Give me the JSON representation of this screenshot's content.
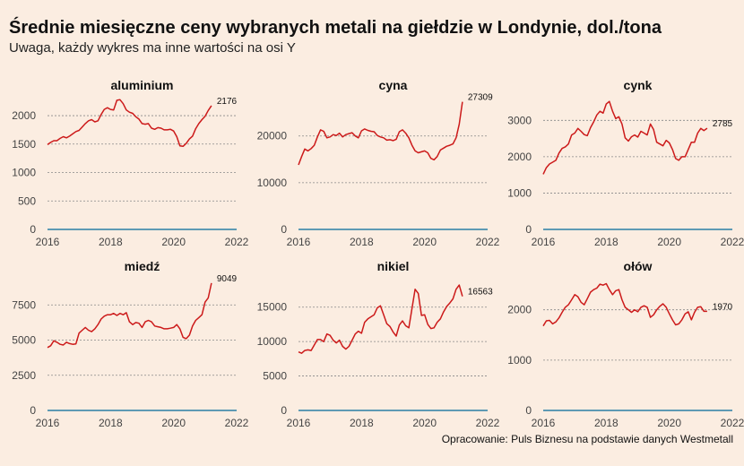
{
  "title": "Średnie miesięczne ceny wybranych metali na giełdzie w Londynie, dol./tona",
  "subtitle": "Uwaga, każdy wykres ma inne wartości na osi Y",
  "source": "Opracowanie: Puls Biznesu na podstawie danych Westmetall",
  "colors": {
    "line": "#cc1a1a",
    "zero_line": "#2a7fa6",
    "grid": "#888888",
    "background": "#fbede1"
  },
  "chart_data": [
    {
      "type": "line",
      "title": "aluminium",
      "xlim": [
        2016,
        2022
      ],
      "ylim": [
        0,
        2300
      ],
      "xticks": [
        2016,
        2018,
        2020,
        2022
      ],
      "yticks": [
        0,
        500,
        1000,
        1500,
        2000
      ],
      "last_label": "2176",
      "x": [
        2016.0,
        2016.1,
        2016.2,
        2016.3,
        2016.4,
        2016.5,
        2016.6,
        2016.7,
        2016.8,
        2016.9,
        2017.0,
        2017.1,
        2017.2,
        2017.3,
        2017.4,
        2017.5,
        2017.6,
        2017.7,
        2017.8,
        2017.9,
        2018.0,
        2018.1,
        2018.2,
        2018.3,
        2018.4,
        2018.5,
        2018.6,
        2018.7,
        2018.8,
        2018.9,
        2019.0,
        2019.1,
        2019.2,
        2019.3,
        2019.4,
        2019.5,
        2019.6,
        2019.7,
        2019.8,
        2019.9,
        2020.0,
        2020.1,
        2020.2,
        2020.3,
        2020.4,
        2020.5,
        2020.6,
        2020.7,
        2020.8,
        2020.9,
        2021.0,
        2021.1,
        2021.2
      ],
      "y": [
        1490,
        1530,
        1560,
        1560,
        1600,
        1630,
        1610,
        1640,
        1680,
        1720,
        1740,
        1800,
        1860,
        1910,
        1930,
        1890,
        1910,
        2020,
        2110,
        2140,
        2110,
        2100,
        2270,
        2280,
        2210,
        2100,
        2060,
        2040,
        1980,
        1940,
        1860,
        1850,
        1860,
        1780,
        1760,
        1790,
        1780,
        1750,
        1750,
        1760,
        1730,
        1630,
        1470,
        1460,
        1510,
        1590,
        1640,
        1770,
        1860,
        1930,
        1990,
        2090,
        2176
      ]
    },
    {
      "type": "line",
      "title": "cyna",
      "xlim": [
        2016,
        2022
      ],
      "ylim": [
        0,
        28000
      ],
      "xticks": [
        2016,
        2018,
        2020,
        2022
      ],
      "yticks": [
        0,
        10000,
        20000
      ],
      "last_label": "27309",
      "x": [
        2016.0,
        2016.1,
        2016.2,
        2016.3,
        2016.4,
        2016.5,
        2016.6,
        2016.7,
        2016.8,
        2016.9,
        2017.0,
        2017.1,
        2017.2,
        2017.3,
        2017.4,
        2017.5,
        2017.6,
        2017.7,
        2017.8,
        2017.9,
        2018.0,
        2018.1,
        2018.2,
        2018.3,
        2018.4,
        2018.5,
        2018.6,
        2018.7,
        2018.8,
        2018.9,
        2019.0,
        2019.1,
        2019.2,
        2019.3,
        2019.4,
        2019.5,
        2019.6,
        2019.7,
        2019.8,
        2019.9,
        2020.0,
        2020.1,
        2020.2,
        2020.3,
        2020.4,
        2020.5,
        2020.6,
        2020.7,
        2020.8,
        2020.9,
        2021.0,
        2021.1,
        2021.2
      ],
      "y": [
        13800,
        15600,
        17200,
        16800,
        17300,
        18000,
        19800,
        21300,
        21000,
        19600,
        19800,
        20300,
        20100,
        20600,
        19800,
        20300,
        20500,
        20700,
        20000,
        19600,
        21100,
        21500,
        21200,
        21000,
        20900,
        20100,
        19800,
        19600,
        19100,
        19200,
        19000,
        19300,
        20900,
        21300,
        20600,
        19600,
        18000,
        16800,
        16400,
        16600,
        16800,
        16400,
        15200,
        14900,
        15600,
        17000,
        17400,
        17800,
        18000,
        18300,
        19600,
        22500,
        27309
      ]
    },
    {
      "type": "line",
      "title": "cynk",
      "xlim": [
        2016,
        2022
      ],
      "ylim": [
        0,
        3600
      ],
      "xticks": [
        2016,
        2018,
        2020,
        2022
      ],
      "yticks": [
        0,
        1000,
        2000,
        3000
      ],
      "last_label": "2785",
      "x": [
        2016.0,
        2016.1,
        2016.2,
        2016.3,
        2016.4,
        2016.5,
        2016.6,
        2016.7,
        2016.8,
        2016.9,
        2017.0,
        2017.1,
        2017.2,
        2017.3,
        2017.4,
        2017.5,
        2017.6,
        2017.7,
        2017.8,
        2017.9,
        2018.0,
        2018.1,
        2018.2,
        2018.3,
        2018.4,
        2018.5,
        2018.6,
        2018.7,
        2018.8,
        2018.9,
        2019.0,
        2019.1,
        2019.2,
        2019.3,
        2019.4,
        2019.5,
        2019.6,
        2019.7,
        2019.8,
        2019.9,
        2020.0,
        2020.1,
        2020.2,
        2020.3,
        2020.4,
        2020.5,
        2020.6,
        2020.7,
        2020.8,
        2020.9,
        2021.0,
        2021.1,
        2021.2
      ],
      "y": [
        1520,
        1700,
        1800,
        1850,
        1900,
        2100,
        2230,
        2270,
        2350,
        2600,
        2650,
        2780,
        2700,
        2610,
        2580,
        2800,
        2960,
        3150,
        3250,
        3200,
        3450,
        3520,
        3250,
        3050,
        3100,
        2900,
        2520,
        2430,
        2550,
        2600,
        2540,
        2700,
        2650,
        2600,
        2900,
        2750,
        2400,
        2350,
        2300,
        2450,
        2380,
        2200,
        1950,
        1900,
        2000,
        2000,
        2200,
        2400,
        2400,
        2650,
        2780,
        2720,
        2785
      ]
    },
    {
      "type": "line",
      "title": "miedź",
      "xlim": [
        2016,
        2022
      ],
      "ylim": [
        0,
        9300
      ],
      "xticks": [
        2016,
        2018,
        2020,
        2022
      ],
      "yticks": [
        0,
        2500,
        5000,
        7500
      ],
      "last_label": "9049",
      "x": [
        2016.0,
        2016.1,
        2016.2,
        2016.3,
        2016.4,
        2016.5,
        2016.6,
        2016.7,
        2016.8,
        2016.9,
        2017.0,
        2017.1,
        2017.2,
        2017.3,
        2017.4,
        2017.5,
        2017.6,
        2017.7,
        2017.8,
        2017.9,
        2018.0,
        2018.1,
        2018.2,
        2018.3,
        2018.4,
        2018.5,
        2018.6,
        2018.7,
        2018.8,
        2018.9,
        2019.0,
        2019.1,
        2019.2,
        2019.3,
        2019.4,
        2019.5,
        2019.6,
        2019.7,
        2019.8,
        2019.9,
        2020.0,
        2020.1,
        2020.2,
        2020.3,
        2020.4,
        2020.5,
        2020.6,
        2020.7,
        2020.8,
        2020.9,
        2021.0,
        2021.1,
        2021.2
      ],
      "y": [
        4470,
        4600,
        4950,
        4850,
        4700,
        4650,
        4850,
        4750,
        4700,
        4730,
        5500,
        5700,
        5900,
        5700,
        5600,
        5800,
        6100,
        6500,
        6700,
        6800,
        6800,
        6900,
        6750,
        6900,
        6800,
        6950,
        6300,
        6100,
        6250,
        6200,
        5900,
        6300,
        6400,
        6300,
        6000,
        5950,
        5900,
        5800,
        5800,
        5850,
        5900,
        6100,
        5800,
        5200,
        5100,
        5350,
        6000,
        6400,
        6600,
        6800,
        7700,
        8000,
        9049
      ]
    },
    {
      "type": "line",
      "title": "nikiel",
      "xlim": [
        2016,
        2022
      ],
      "ylim": [
        0,
        19000
      ],
      "xticks": [
        2016,
        2018,
        2020,
        2022
      ],
      "yticks": [
        0,
        5000,
        10000,
        15000
      ],
      "last_label": "16563",
      "x": [
        2016.0,
        2016.1,
        2016.2,
        2016.3,
        2016.4,
        2016.5,
        2016.6,
        2016.7,
        2016.8,
        2016.9,
        2017.0,
        2017.1,
        2017.2,
        2017.3,
        2017.4,
        2017.5,
        2017.6,
        2017.7,
        2017.8,
        2017.9,
        2018.0,
        2018.1,
        2018.2,
        2018.3,
        2018.4,
        2018.5,
        2018.6,
        2018.7,
        2018.8,
        2018.9,
        2019.0,
        2019.1,
        2019.2,
        2019.3,
        2019.4,
        2019.5,
        2019.6,
        2019.7,
        2019.8,
        2019.9,
        2020.0,
        2020.1,
        2020.2,
        2020.3,
        2020.4,
        2020.5,
        2020.6,
        2020.7,
        2020.8,
        2020.9,
        2021.0,
        2021.1,
        2021.2
      ],
      "y": [
        8500,
        8300,
        8700,
        8800,
        8700,
        9500,
        10300,
        10300,
        10000,
        11100,
        10900,
        10200,
        9800,
        10200,
        9300,
        8900,
        9300,
        10200,
        11100,
        11500,
        11200,
        12800,
        13300,
        13600,
        13900,
        14900,
        15200,
        13900,
        12600,
        12200,
        11400,
        10800,
        12400,
        13000,
        12300,
        12000,
        14800,
        17600,
        17000,
        13800,
        13900,
        12500,
        11900,
        12000,
        12800,
        13300,
        14300,
        15100,
        15600,
        16200,
        17600,
        18200,
        16563
      ]
    },
    {
      "type": "line",
      "title": "ołów",
      "xlim": [
        2016,
        2022
      ],
      "ylim": [
        0,
        2600
      ],
      "xticks": [
        2016,
        2018,
        2020,
        2022
      ],
      "yticks": [
        0,
        1000,
        2000
      ],
      "last_label": "1970",
      "x": [
        2016.0,
        2016.1,
        2016.2,
        2016.3,
        2016.4,
        2016.5,
        2016.6,
        2016.7,
        2016.8,
        2016.9,
        2017.0,
        2017.1,
        2017.2,
        2017.3,
        2017.4,
        2017.5,
        2017.6,
        2017.7,
        2017.8,
        2017.9,
        2018.0,
        2018.1,
        2018.2,
        2018.3,
        2018.4,
        2018.5,
        2018.6,
        2018.7,
        2018.8,
        2018.9,
        2019.0,
        2019.1,
        2019.2,
        2019.3,
        2019.4,
        2019.5,
        2019.6,
        2019.7,
        2019.8,
        2019.9,
        2020.0,
        2020.1,
        2020.2,
        2020.3,
        2020.4,
        2020.5,
        2020.6,
        2020.7,
        2020.8,
        2020.9,
        2021.0,
        2021.1,
        2021.2
      ],
      "y": [
        1680,
        1780,
        1790,
        1720,
        1760,
        1840,
        1950,
        2050,
        2100,
        2200,
        2300,
        2260,
        2150,
        2100,
        2220,
        2350,
        2400,
        2430,
        2510,
        2490,
        2520,
        2400,
        2300,
        2380,
        2400,
        2200,
        2050,
        2000,
        1950,
        2000,
        1960,
        2050,
        2080,
        2050,
        1850,
        1900,
        2000,
        2070,
        2120,
        2050,
        1920,
        1800,
        1700,
        1720,
        1800,
        1920,
        1960,
        1800,
        1950,
        2050,
        2060,
        1970,
        1970
      ]
    }
  ]
}
